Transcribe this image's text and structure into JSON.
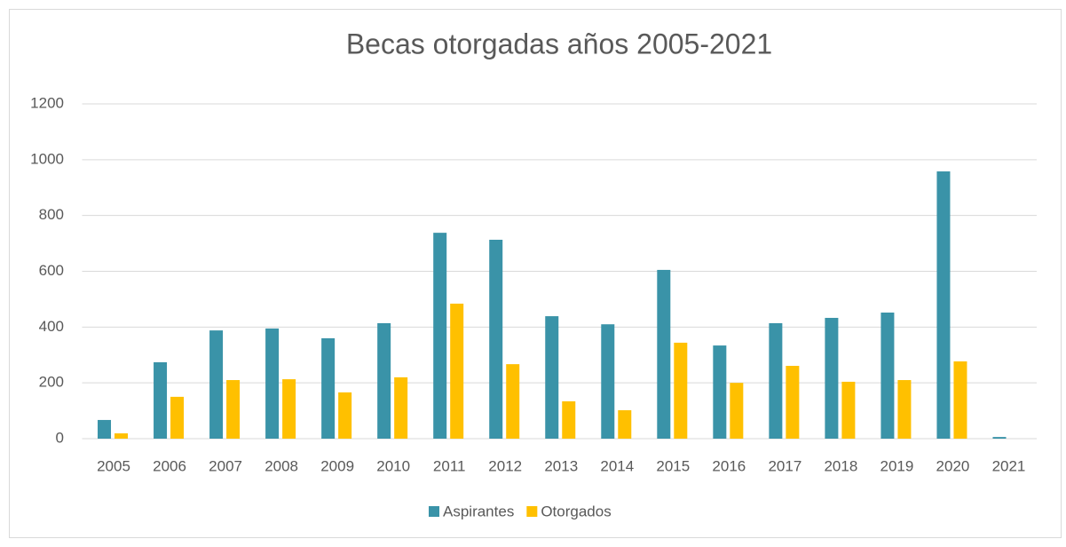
{
  "chart_data": {
    "type": "bar",
    "title": "Becas otorgadas años 2005-2021",
    "categories": [
      "2005",
      "2006",
      "2007",
      "2008",
      "2009",
      "2010",
      "2011",
      "2012",
      "2013",
      "2014",
      "2015",
      "2016",
      "2017",
      "2018",
      "2019",
      "2020",
      "2021"
    ],
    "series": [
      {
        "name": "Aspirantes",
        "color": "#3a93a8",
        "values": [
          67,
          274,
          388,
          395,
          360,
          414,
          738,
          713,
          439,
          410,
          605,
          334,
          414,
          433,
          452,
          958,
          6
        ]
      },
      {
        "name": "Otorgados",
        "color": "#ffc000",
        "values": [
          19,
          150,
          210,
          213,
          166,
          220,
          484,
          267,
          134,
          102,
          344,
          200,
          261,
          204,
          210,
          277,
          0
        ]
      }
    ],
    "ylim": [
      0,
      1200
    ],
    "yticks": [
      0,
      200,
      400,
      600,
      800,
      1000,
      1200
    ],
    "grid": true,
    "legend": "bottom"
  }
}
